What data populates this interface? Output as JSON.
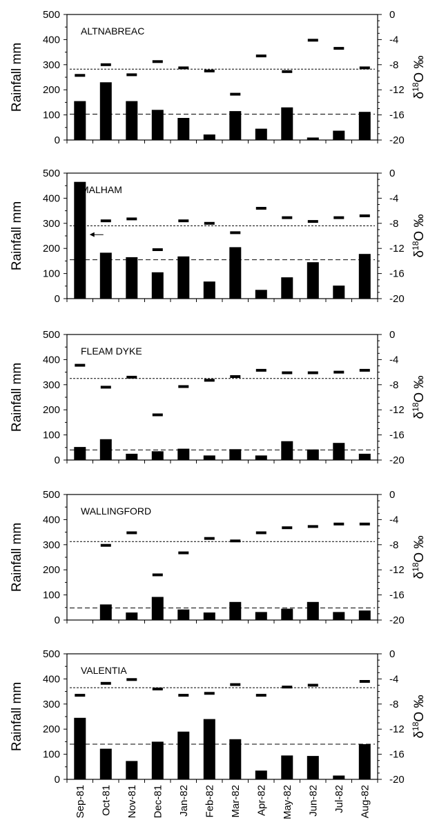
{
  "chart_data": {
    "type": "bar",
    "categories": [
      "Sep-81",
      "Oct-81",
      "Nov-81",
      "Dec-81",
      "Jan-82",
      "Feb-82",
      "Mar-82",
      "Apr-82",
      "May-82",
      "Jun-82",
      "Jul-82",
      "Aug-82"
    ],
    "ylabel": "Rainfall mm",
    "y2label": {
      "delta": "δ",
      "sup": "18",
      "rest": "O ‰"
    },
    "ylim": [
      0,
      500
    ],
    "y2lim": [
      -20,
      0
    ],
    "yticks": [
      "0",
      "100",
      "200",
      "300",
      "400",
      "500"
    ],
    "y2ticks": [
      "0",
      "-4",
      "-8",
      "-12",
      "-16",
      "-20"
    ],
    "grid": false,
    "panels": [
      {
        "station": "ALTNABREAC",
        "rainfall": [
          155,
          230,
          155,
          120,
          88,
          22,
          115,
          45,
          130,
          10,
          37,
          112
        ],
        "delta18O": [
          -9.7,
          -8.0,
          -9.6,
          -7.5,
          -8.5,
          -9.0,
          -12.7,
          -6.6,
          -9.1,
          -4.1,
          -5.4,
          -8.5
        ],
        "mean_rainfall": 103,
        "mean_delta18O": -8.7
      },
      {
        "station": "MALHAM",
        "rainfall": [
          465,
          183,
          165,
          105,
          168,
          68,
          205,
          35,
          85,
          145,
          52,
          178
        ],
        "delta18O": [
          -9.8,
          -7.6,
          -7.3,
          -12.2,
          -7.6,
          -8.0,
          -9.5,
          -5.6,
          -7.1,
          -7.7,
          -7.1,
          -6.8
        ],
        "mean_rainfall": 155,
        "mean_delta18O": -8.4,
        "arrow_note": "off-scale bar marker"
      },
      {
        "station": "FLEAM DYKE",
        "rainfall": [
          52,
          83,
          25,
          35,
          45,
          18,
          43,
          18,
          75,
          42,
          68,
          25
        ],
        "delta18O": [
          -4.9,
          -8.4,
          -6.8,
          -12.8,
          -8.3,
          -7.3,
          -6.7,
          -5.7,
          -6.1,
          -6.1,
          -6.0,
          -5.7
        ],
        "mean_rainfall": 40,
        "mean_delta18O": -7.0
      },
      {
        "station": "WALLINGFORD",
        "rainfall": [
          0,
          62,
          30,
          92,
          42,
          30,
          72,
          32,
          45,
          72,
          32,
          38
        ],
        "delta18O": [
          null,
          -8.1,
          -6.1,
          -12.8,
          -9.3,
          -7.0,
          -7.4,
          -6.1,
          -5.3,
          -5.1,
          -4.7,
          -4.7
        ],
        "mean_rainfall": 48,
        "mean_delta18O": -7.5
      },
      {
        "station": "VALENTIA",
        "rainfall": [
          245,
          122,
          73,
          150,
          190,
          240,
          160,
          35,
          95,
          93,
          15,
          140
        ],
        "delta18O": [
          -6.6,
          -4.7,
          -4.1,
          -5.6,
          -6.6,
          -6.3,
          -4.9,
          -6.6,
          -5.3,
          -5.0,
          null,
          -4.4
        ],
        "mean_rainfall": 140,
        "mean_delta18O": -5.4
      }
    ]
  }
}
